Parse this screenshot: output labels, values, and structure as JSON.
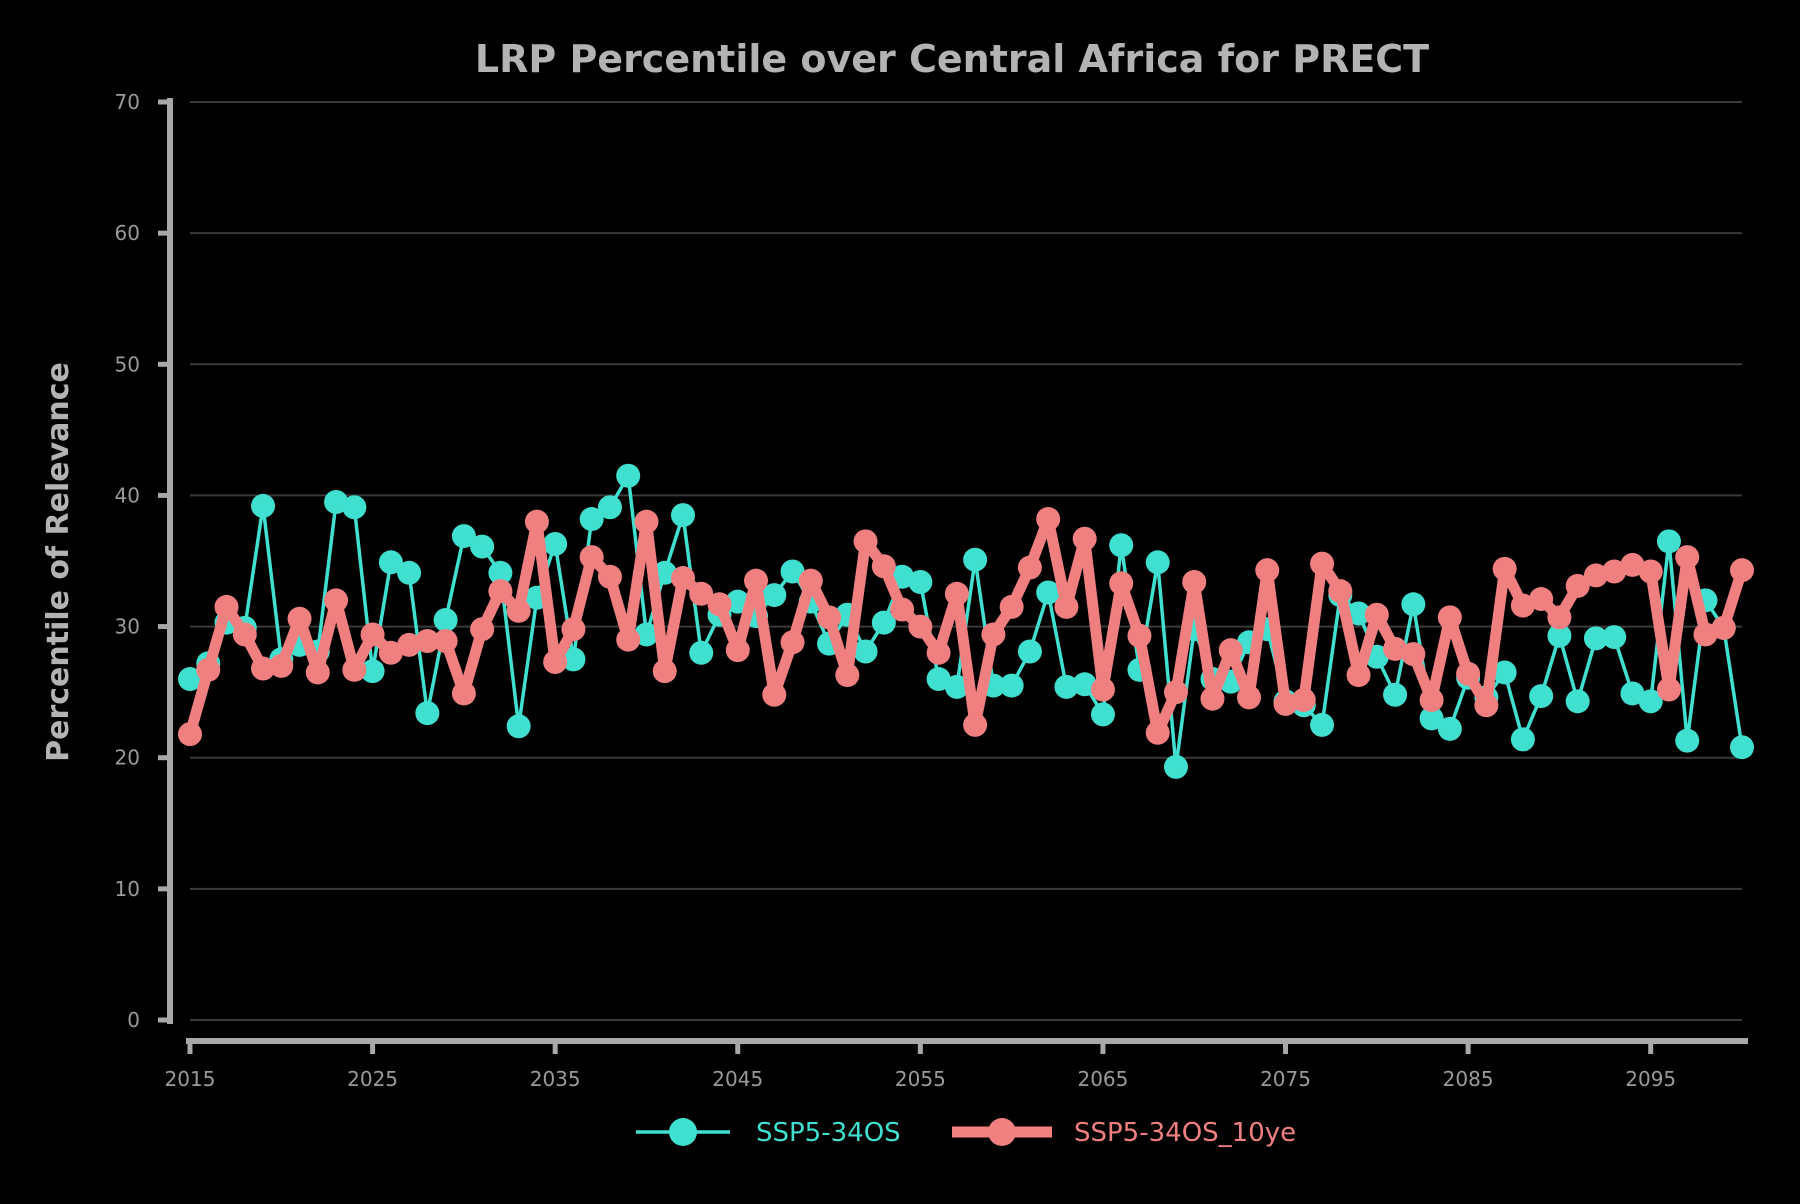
{
  "chart_data": {
    "type": "line",
    "title": "LRP Percentile over Central Africa for PRECT",
    "xlabel": "",
    "ylabel": "Percentile of Relevance",
    "xlim": [
      2015,
      2100
    ],
    "ylim": [
      0,
      70
    ],
    "x_ticks": [
      2015,
      2025,
      2035,
      2045,
      2055,
      2065,
      2075,
      2085,
      2095
    ],
    "y_ticks": [
      0,
      10,
      20,
      30,
      40,
      50,
      60,
      70
    ],
    "grid": "horizontal",
    "legend_position": "bottom-center",
    "x": [
      2015,
      2016,
      2017,
      2018,
      2019,
      2020,
      2021,
      2022,
      2023,
      2024,
      2025,
      2026,
      2027,
      2028,
      2029,
      2030,
      2031,
      2032,
      2033,
      2034,
      2035,
      2036,
      2037,
      2038,
      2039,
      2040,
      2041,
      2042,
      2043,
      2044,
      2045,
      2046,
      2047,
      2048,
      2049,
      2050,
      2051,
      2052,
      2053,
      2054,
      2055,
      2056,
      2057,
      2058,
      2059,
      2060,
      2061,
      2062,
      2063,
      2064,
      2065,
      2066,
      2067,
      2068,
      2069,
      2070,
      2071,
      2072,
      2073,
      2074,
      2075,
      2076,
      2077,
      2078,
      2079,
      2080,
      2081,
      2082,
      2083,
      2084,
      2085,
      2086,
      2087,
      2088,
      2089,
      2090,
      2091,
      2092,
      2093,
      2094,
      2095,
      2096,
      2097,
      2098,
      2099,
      2100
    ],
    "series": [
      {
        "name": "SSP5-34OS",
        "color": "#40e0d0",
        "values": [
          26.0,
          27.2,
          30.3,
          29.9,
          39.2,
          27.5,
          28.6,
          28.1,
          39.5,
          39.1,
          26.6,
          34.9,
          34.1,
          23.4,
          30.5,
          36.9,
          36.1,
          34.1,
          22.4,
          32.2,
          36.3,
          27.5,
          38.2,
          39.1,
          41.5,
          29.4,
          34.1,
          38.5,
          28.0,
          30.9,
          31.9,
          30.8,
          32.4,
          34.2,
          31.9,
          28.7,
          30.9,
          28.1,
          30.3,
          33.8,
          33.4,
          26.0,
          25.4,
          35.1,
          25.5,
          25.5,
          28.1,
          32.6,
          25.4,
          25.6,
          23.3,
          36.2,
          26.7,
          34.9,
          19.3,
          29.8,
          26.0,
          25.8,
          28.8,
          29.8,
          24.3,
          24.0,
          22.5,
          32.4,
          31.0,
          27.7,
          24.8,
          31.7,
          23.0,
          22.2,
          26.1,
          24.6,
          26.5,
          21.4,
          24.7,
          29.3,
          24.3,
          29.1,
          29.2,
          24.9,
          24.3,
          36.5,
          21.3,
          32.0,
          29.9,
          20.8
        ]
      },
      {
        "name": "SSP5-34OS_10ye",
        "color": "#f08080",
        "values": [
          21.8,
          26.7,
          31.5,
          29.4,
          26.8,
          27.0,
          30.6,
          26.5,
          32.0,
          26.7,
          29.4,
          28.0,
          28.6,
          28.9,
          28.9,
          24.9,
          29.8,
          32.7,
          31.2,
          38.0,
          27.3,
          29.8,
          35.3,
          33.8,
          29.0,
          38.0,
          26.6,
          33.7,
          32.5,
          31.7,
          28.2,
          33.5,
          24.8,
          28.8,
          33.5,
          30.7,
          26.3,
          36.5,
          34.6,
          31.3,
          30.0,
          28.0,
          32.5,
          22.5,
          29.4,
          31.5,
          34.5,
          38.2,
          31.5,
          36.7,
          25.2,
          33.3,
          29.3,
          21.9,
          25.0,
          33.4,
          24.5,
          28.2,
          24.6,
          34.3,
          24.1,
          24.4,
          34.8,
          32.7,
          26.3,
          30.9,
          28.3,
          27.9,
          24.4,
          30.7,
          26.4,
          24.0,
          34.4,
          31.6,
          32.1,
          30.7,
          33.1,
          33.9,
          34.2,
          34.7,
          34.2,
          25.2,
          35.3,
          29.4,
          29.9,
          34.3
        ]
      }
    ]
  }
}
